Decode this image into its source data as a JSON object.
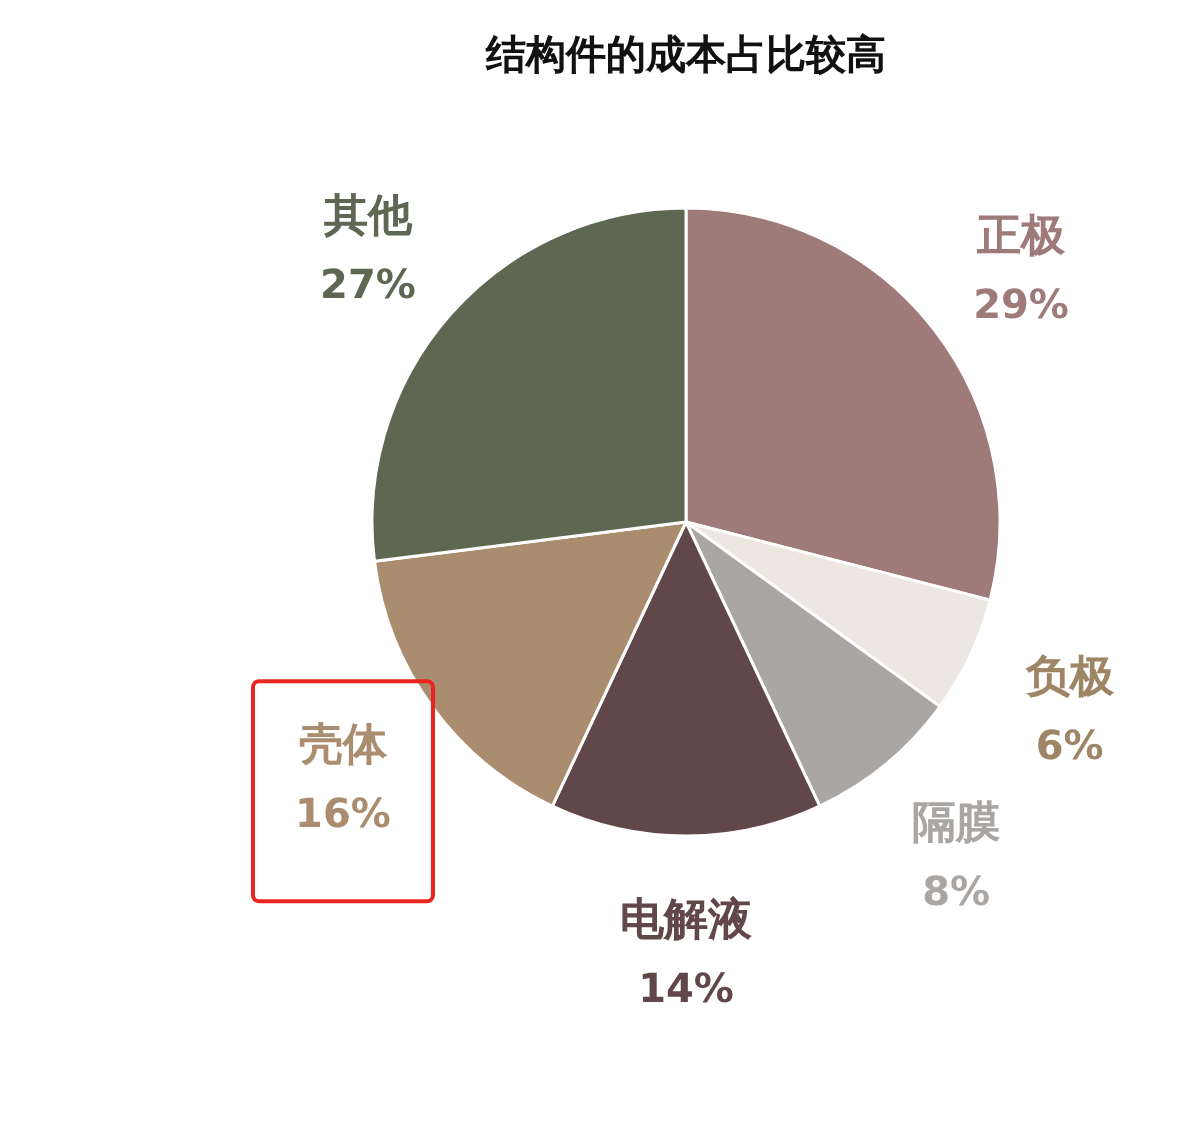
{
  "chart_data": {
    "type": "pie",
    "title": "结构件的成本占比较高",
    "categories": [
      "正极",
      "负极",
      "隔膜",
      "电解液",
      "壳体",
      "其他"
    ],
    "values": [
      29,
      6,
      8,
      14,
      16,
      27
    ],
    "colors": [
      "#9e7a78",
      "#ece7e1",
      "#aaa6a4",
      "#62474a",
      "#a98d6e",
      "#5d6751"
    ],
    "value_labels": [
      "29%",
      "6%",
      "8%",
      "14%",
      "16%",
      "27%"
    ],
    "legend": false
  }
}
